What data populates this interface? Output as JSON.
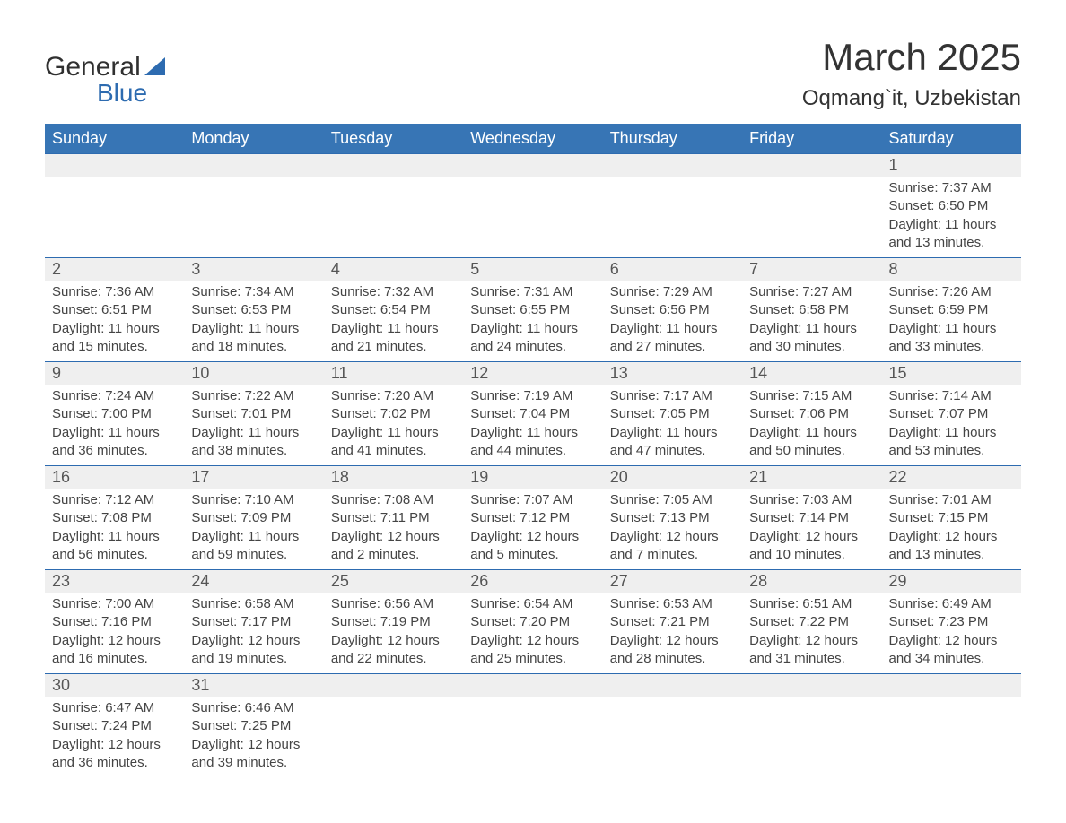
{
  "brand": {
    "word1": "General",
    "word2": "Blue"
  },
  "title": "March 2025",
  "location": "Oqmang`it, Uzbekistan",
  "colors": {
    "header_bg": "#3775b5",
    "header_fg": "#ffffff",
    "daynum_bg": "#efefef",
    "border": "#2d6bb0",
    "text": "#444444"
  },
  "weekdays": [
    "Sunday",
    "Monday",
    "Tuesday",
    "Wednesday",
    "Thursday",
    "Friday",
    "Saturday"
  ],
  "weeks": [
    [
      null,
      null,
      null,
      null,
      null,
      null,
      {
        "d": "1",
        "sr": "Sunrise: 7:37 AM",
        "ss": "Sunset: 6:50 PM",
        "dl1": "Daylight: 11 hours",
        "dl2": "and 13 minutes."
      }
    ],
    [
      {
        "d": "2",
        "sr": "Sunrise: 7:36 AM",
        "ss": "Sunset: 6:51 PM",
        "dl1": "Daylight: 11 hours",
        "dl2": "and 15 minutes."
      },
      {
        "d": "3",
        "sr": "Sunrise: 7:34 AM",
        "ss": "Sunset: 6:53 PM",
        "dl1": "Daylight: 11 hours",
        "dl2": "and 18 minutes."
      },
      {
        "d": "4",
        "sr": "Sunrise: 7:32 AM",
        "ss": "Sunset: 6:54 PM",
        "dl1": "Daylight: 11 hours",
        "dl2": "and 21 minutes."
      },
      {
        "d": "5",
        "sr": "Sunrise: 7:31 AM",
        "ss": "Sunset: 6:55 PM",
        "dl1": "Daylight: 11 hours",
        "dl2": "and 24 minutes."
      },
      {
        "d": "6",
        "sr": "Sunrise: 7:29 AM",
        "ss": "Sunset: 6:56 PM",
        "dl1": "Daylight: 11 hours",
        "dl2": "and 27 minutes."
      },
      {
        "d": "7",
        "sr": "Sunrise: 7:27 AM",
        "ss": "Sunset: 6:58 PM",
        "dl1": "Daylight: 11 hours",
        "dl2": "and 30 minutes."
      },
      {
        "d": "8",
        "sr": "Sunrise: 7:26 AM",
        "ss": "Sunset: 6:59 PM",
        "dl1": "Daylight: 11 hours",
        "dl2": "and 33 minutes."
      }
    ],
    [
      {
        "d": "9",
        "sr": "Sunrise: 7:24 AM",
        "ss": "Sunset: 7:00 PM",
        "dl1": "Daylight: 11 hours",
        "dl2": "and 36 minutes."
      },
      {
        "d": "10",
        "sr": "Sunrise: 7:22 AM",
        "ss": "Sunset: 7:01 PM",
        "dl1": "Daylight: 11 hours",
        "dl2": "and 38 minutes."
      },
      {
        "d": "11",
        "sr": "Sunrise: 7:20 AM",
        "ss": "Sunset: 7:02 PM",
        "dl1": "Daylight: 11 hours",
        "dl2": "and 41 minutes."
      },
      {
        "d": "12",
        "sr": "Sunrise: 7:19 AM",
        "ss": "Sunset: 7:04 PM",
        "dl1": "Daylight: 11 hours",
        "dl2": "and 44 minutes."
      },
      {
        "d": "13",
        "sr": "Sunrise: 7:17 AM",
        "ss": "Sunset: 7:05 PM",
        "dl1": "Daylight: 11 hours",
        "dl2": "and 47 minutes."
      },
      {
        "d": "14",
        "sr": "Sunrise: 7:15 AM",
        "ss": "Sunset: 7:06 PM",
        "dl1": "Daylight: 11 hours",
        "dl2": "and 50 minutes."
      },
      {
        "d": "15",
        "sr": "Sunrise: 7:14 AM",
        "ss": "Sunset: 7:07 PM",
        "dl1": "Daylight: 11 hours",
        "dl2": "and 53 minutes."
      }
    ],
    [
      {
        "d": "16",
        "sr": "Sunrise: 7:12 AM",
        "ss": "Sunset: 7:08 PM",
        "dl1": "Daylight: 11 hours",
        "dl2": "and 56 minutes."
      },
      {
        "d": "17",
        "sr": "Sunrise: 7:10 AM",
        "ss": "Sunset: 7:09 PM",
        "dl1": "Daylight: 11 hours",
        "dl2": "and 59 minutes."
      },
      {
        "d": "18",
        "sr": "Sunrise: 7:08 AM",
        "ss": "Sunset: 7:11 PM",
        "dl1": "Daylight: 12 hours",
        "dl2": "and 2 minutes."
      },
      {
        "d": "19",
        "sr": "Sunrise: 7:07 AM",
        "ss": "Sunset: 7:12 PM",
        "dl1": "Daylight: 12 hours",
        "dl2": "and 5 minutes."
      },
      {
        "d": "20",
        "sr": "Sunrise: 7:05 AM",
        "ss": "Sunset: 7:13 PM",
        "dl1": "Daylight: 12 hours",
        "dl2": "and 7 minutes."
      },
      {
        "d": "21",
        "sr": "Sunrise: 7:03 AM",
        "ss": "Sunset: 7:14 PM",
        "dl1": "Daylight: 12 hours",
        "dl2": "and 10 minutes."
      },
      {
        "d": "22",
        "sr": "Sunrise: 7:01 AM",
        "ss": "Sunset: 7:15 PM",
        "dl1": "Daylight: 12 hours",
        "dl2": "and 13 minutes."
      }
    ],
    [
      {
        "d": "23",
        "sr": "Sunrise: 7:00 AM",
        "ss": "Sunset: 7:16 PM",
        "dl1": "Daylight: 12 hours",
        "dl2": "and 16 minutes."
      },
      {
        "d": "24",
        "sr": "Sunrise: 6:58 AM",
        "ss": "Sunset: 7:17 PM",
        "dl1": "Daylight: 12 hours",
        "dl2": "and 19 minutes."
      },
      {
        "d": "25",
        "sr": "Sunrise: 6:56 AM",
        "ss": "Sunset: 7:19 PM",
        "dl1": "Daylight: 12 hours",
        "dl2": "and 22 minutes."
      },
      {
        "d": "26",
        "sr": "Sunrise: 6:54 AM",
        "ss": "Sunset: 7:20 PM",
        "dl1": "Daylight: 12 hours",
        "dl2": "and 25 minutes."
      },
      {
        "d": "27",
        "sr": "Sunrise: 6:53 AM",
        "ss": "Sunset: 7:21 PM",
        "dl1": "Daylight: 12 hours",
        "dl2": "and 28 minutes."
      },
      {
        "d": "28",
        "sr": "Sunrise: 6:51 AM",
        "ss": "Sunset: 7:22 PM",
        "dl1": "Daylight: 12 hours",
        "dl2": "and 31 minutes."
      },
      {
        "d": "29",
        "sr": "Sunrise: 6:49 AM",
        "ss": "Sunset: 7:23 PM",
        "dl1": "Daylight: 12 hours",
        "dl2": "and 34 minutes."
      }
    ],
    [
      {
        "d": "30",
        "sr": "Sunrise: 6:47 AM",
        "ss": "Sunset: 7:24 PM",
        "dl1": "Daylight: 12 hours",
        "dl2": "and 36 minutes."
      },
      {
        "d": "31",
        "sr": "Sunrise: 6:46 AM",
        "ss": "Sunset: 7:25 PM",
        "dl1": "Daylight: 12 hours",
        "dl2": "and 39 minutes."
      },
      null,
      null,
      null,
      null,
      null
    ]
  ]
}
